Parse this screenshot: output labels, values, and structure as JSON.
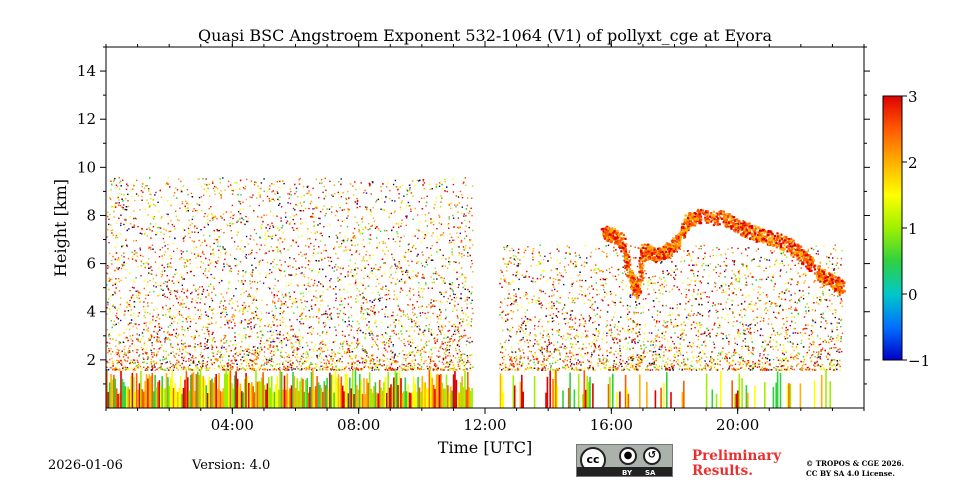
{
  "chart_data": {
    "type": "heatmap",
    "title": "Quasi BSC Angstroem Exponent 532-1064 (V1) of pollyxt_cge at Evora",
    "xlabel": "Time [UTC]",
    "ylabel": "Height [km]",
    "xlim": [
      0,
      24
    ],
    "ylim": [
      0,
      15
    ],
    "xticks": [
      {
        "value": 4,
        "label": "04:00"
      },
      {
        "value": 8,
        "label": "08:00"
      },
      {
        "value": 12,
        "label": "12:00"
      },
      {
        "value": 16,
        "label": "16:00"
      },
      {
        "value": 20,
        "label": "20:00"
      }
    ],
    "yticks": [
      {
        "value": 2,
        "label": "2"
      },
      {
        "value": 4,
        "label": "4"
      },
      {
        "value": 6,
        "label": "6"
      },
      {
        "value": 8,
        "label": "8"
      },
      {
        "value": 10,
        "label": "10"
      },
      {
        "value": 12,
        "label": "12"
      },
      {
        "value": 14,
        "label": "14"
      }
    ],
    "colorbar": {
      "min": -1,
      "max": 3,
      "ticks": [
        {
          "value": -1,
          "label": "−1"
        },
        {
          "value": 0,
          "label": "0"
        },
        {
          "value": 1,
          "label": "1"
        },
        {
          "value": 2,
          "label": "2"
        },
        {
          "value": 3,
          "label": "3"
        }
      ],
      "colormap": [
        "#0000c8",
        "#0070ff",
        "#00c8c8",
        "#30d040",
        "#9ef000",
        "#ffff00",
        "#ffb000",
        "#ff5a00",
        "#e00000"
      ]
    },
    "data_gaps": [
      {
        "start": 11.6,
        "end": 12.45
      }
    ],
    "noise_regions": [
      {
        "t0": 0.0,
        "t1": 11.6,
        "h_top": 9.6,
        "note": "scattered noise, denser below 6.5 km"
      },
      {
        "t0": 12.45,
        "t1": 23.3,
        "h_top": 6.8,
        "note": "scattered noise"
      }
    ],
    "near_surface_layer": {
      "h0": 0.0,
      "h1": 1.6,
      "value_range": [
        0.5,
        3
      ]
    },
    "aerosol_layer": [
      {
        "t": 15.7,
        "h": 7.4
      },
      {
        "t": 16.0,
        "h": 7.2
      },
      {
        "t": 16.3,
        "h": 7.0
      },
      {
        "t": 16.6,
        "h": 5.5
      },
      {
        "t": 16.8,
        "h": 4.8
      },
      {
        "t": 17.0,
        "h": 6.6
      },
      {
        "t": 17.4,
        "h": 6.4
      },
      {
        "t": 17.8,
        "h": 6.6
      },
      {
        "t": 18.1,
        "h": 7.0
      },
      {
        "t": 18.4,
        "h": 7.8
      },
      {
        "t": 18.8,
        "h": 8.0
      },
      {
        "t": 19.6,
        "h": 7.9
      },
      {
        "t": 20.1,
        "h": 7.5
      },
      {
        "t": 20.5,
        "h": 7.3
      },
      {
        "t": 21.0,
        "h": 7.1
      },
      {
        "t": 21.6,
        "h": 6.8
      },
      {
        "t": 22.1,
        "h": 6.3
      },
      {
        "t": 22.6,
        "h": 5.6
      },
      {
        "t": 23.0,
        "h": 5.3
      },
      {
        "t": 23.3,
        "h": 5.0
      }
    ],
    "aerosol_layer_value": 2.3
  },
  "footer": {
    "date": "2026-01-06",
    "version": "Version: 4.0",
    "preliminary_line1": "Preliminary",
    "preliminary_line2": "Results.",
    "copyright_line1": "© TROPOS & CGE 2026.",
    "copyright_line2": "CC BY SA 4.0 License.",
    "license_logo": {
      "cc": "cc",
      "by": "BY",
      "sa": "SA"
    }
  }
}
